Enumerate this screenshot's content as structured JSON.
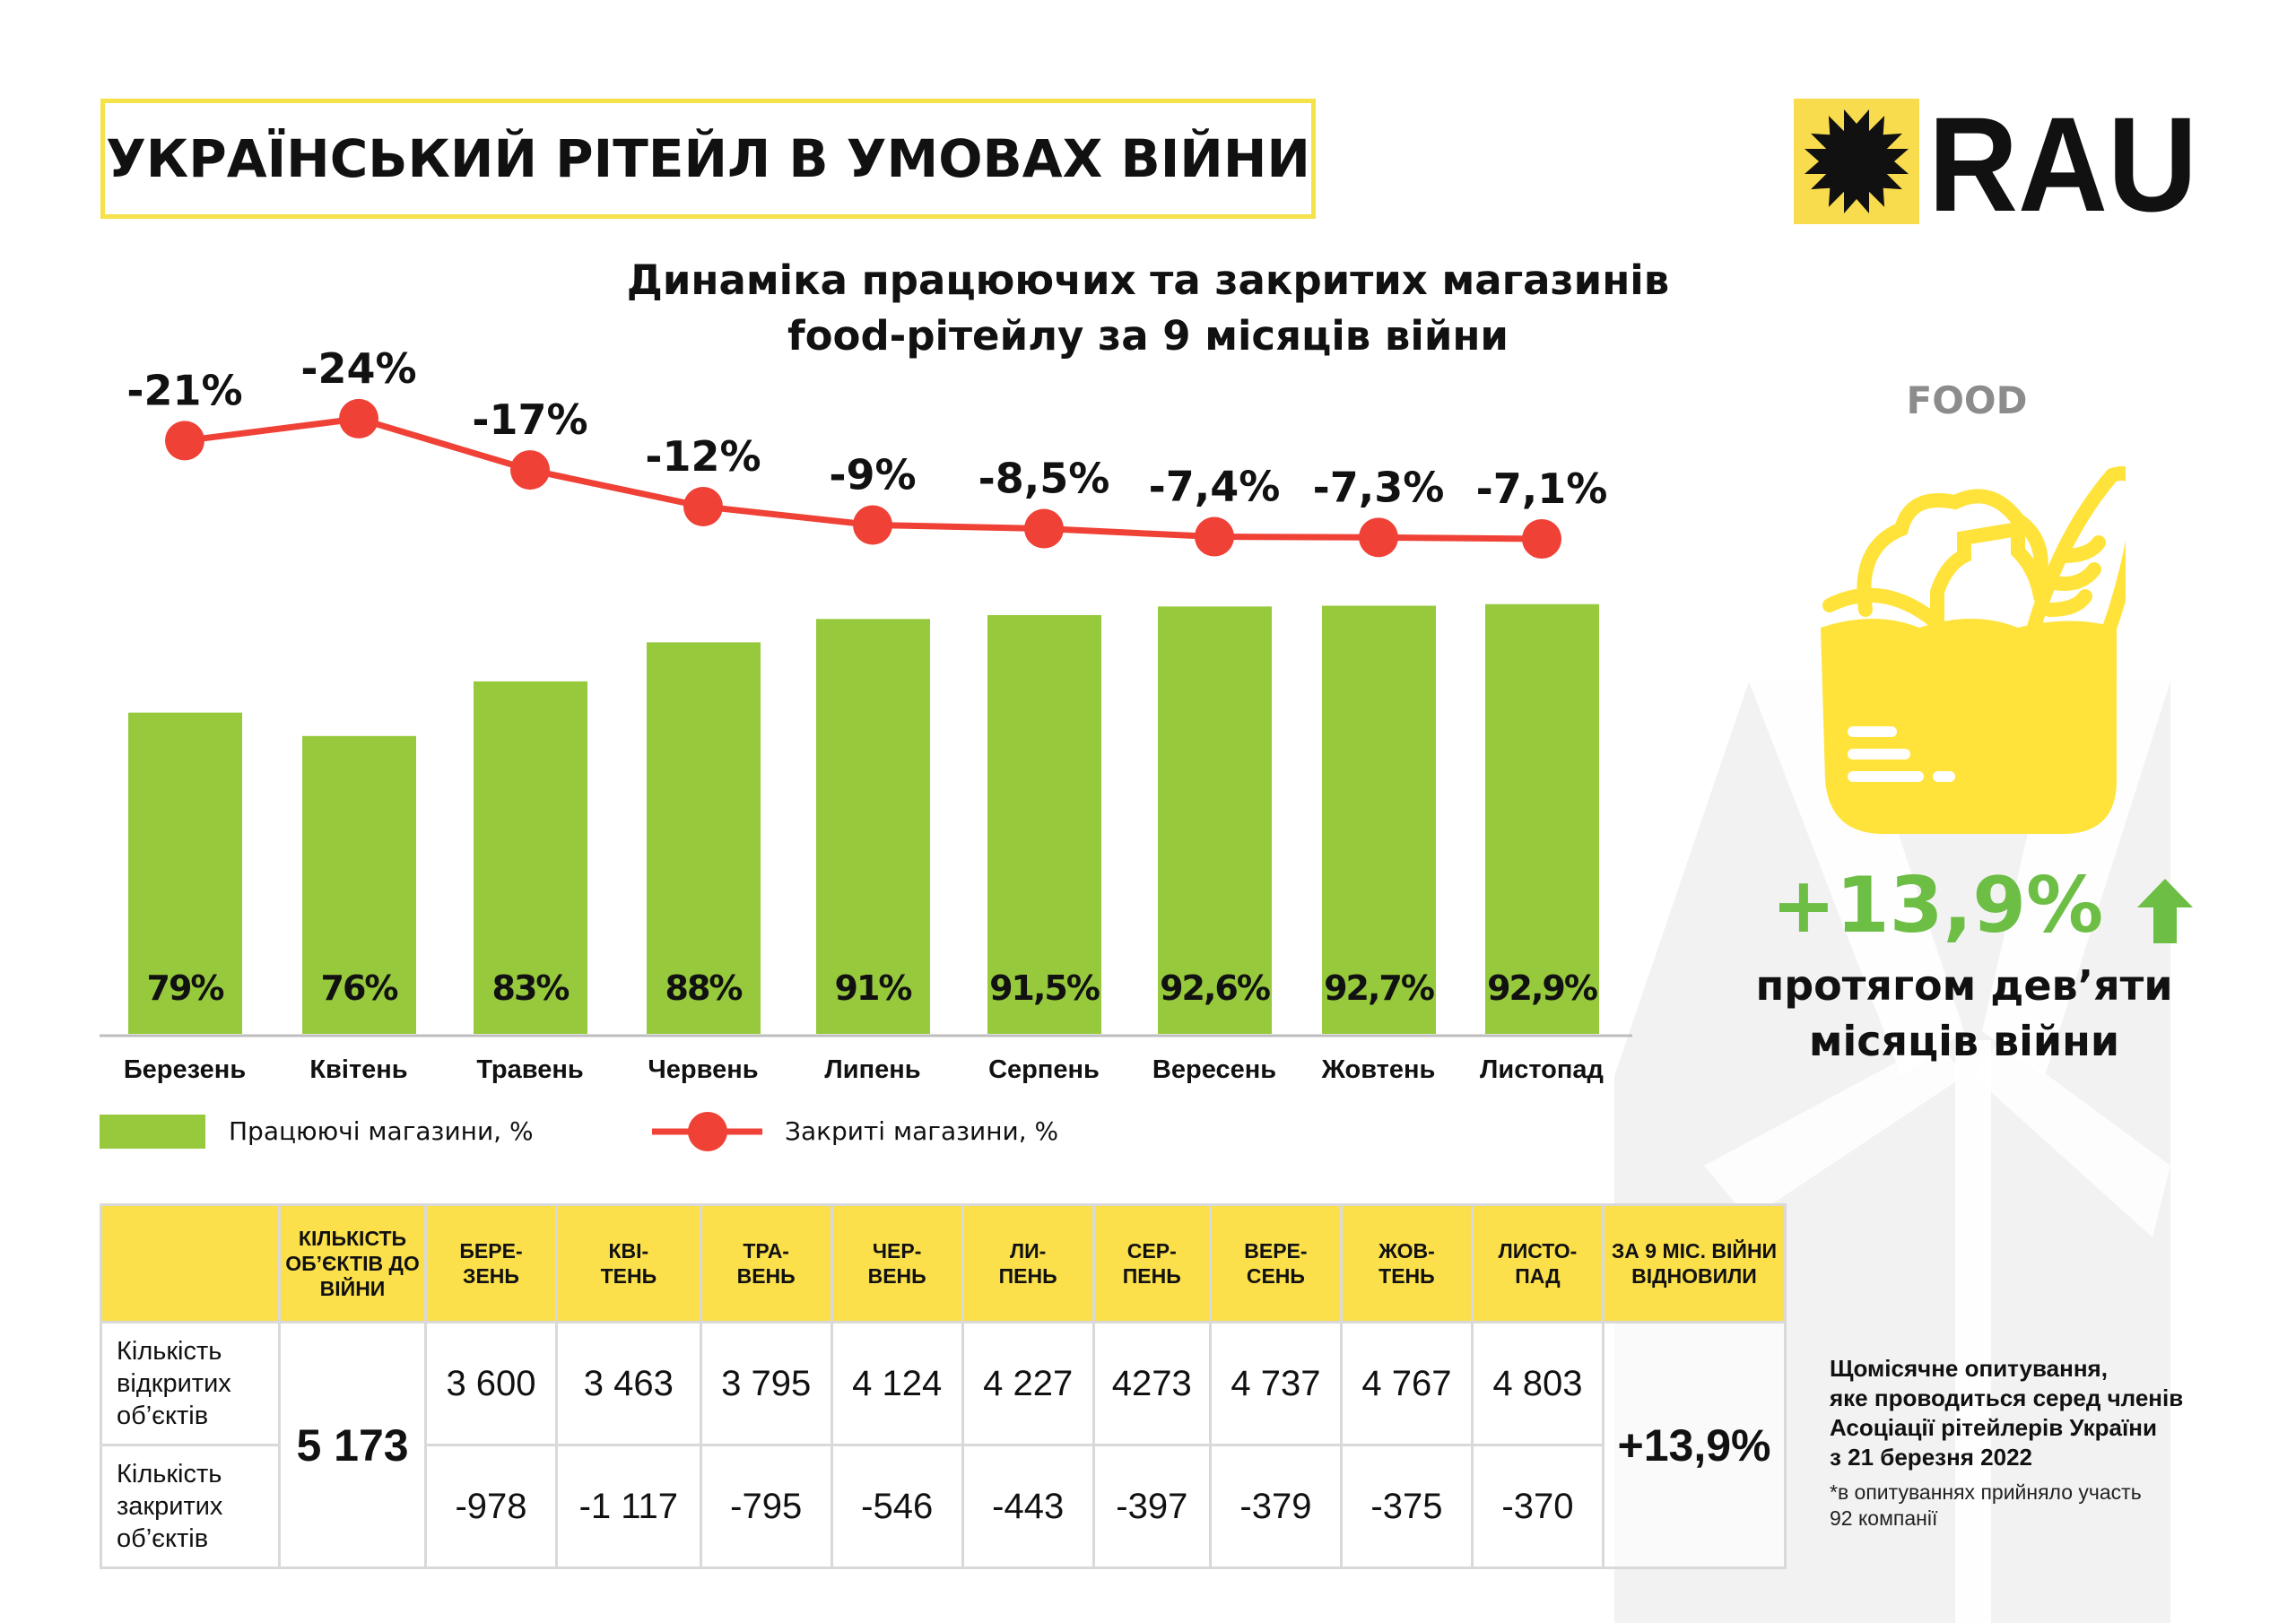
{
  "header": {
    "title": "УКРАЇНСЬКИЙ РІТЕЙЛ В УМОВАХ ВІЙНИ",
    "logo_text": "RAU"
  },
  "colors": {
    "working_bar": "#97C93D",
    "closed_line": "#EF4136",
    "accent_yellow": "#FBE04B",
    "growth_green": "#6DBE45"
  },
  "chart_data": {
    "type": "bar+line",
    "title": "Динаміка працюючих та закритих магазинів food-рітейлу за 9 місяців війни",
    "title_lines": [
      "Динаміка працюючих та закритих магазинів",
      "food-рітейлу за 9 місяців війни"
    ],
    "categories": [
      "Березень",
      "Квітень",
      "Травень",
      "Червень",
      "Липень",
      "Серпень",
      "Вересень",
      "Жовтень",
      "Листопад"
    ],
    "series": [
      {
        "name": "Працюючі магазини, %",
        "type": "bar",
        "values": [
          79,
          76,
          83,
          88,
          91,
          91.5,
          92.6,
          92.7,
          92.9
        ],
        "labels": [
          "79%",
          "76%",
          "83%",
          "88%",
          "91%",
          "91,5%",
          "92,6%",
          "92,7%",
          "92,9%"
        ]
      },
      {
        "name": "Закриті магазини, %",
        "type": "line",
        "values": [
          -21,
          -24,
          -17,
          -12,
          -9,
          -8.5,
          -7.4,
          -7.3,
          -7.1
        ],
        "labels": [
          "-21%",
          "-24%",
          "-17%",
          "-12%",
          "-9%",
          "-8,5%",
          "-7,4%",
          "-7,3%",
          "-7,1%"
        ]
      }
    ],
    "legend": "bottom-left",
    "grid": false
  },
  "table": {
    "headers": [
      "",
      "КІЛЬКІСТЬ ОБ’ЄКТІВ ДО ВІЙНИ",
      "БЕРЕ-\nЗЕНЬ",
      "КВІ-\nТЕНЬ",
      "ТРА-\nВЕНЬ",
      "ЧЕР-\nВЕНЬ",
      "ЛИ-\nПЕНЬ",
      "СЕР-\nПЕНЬ",
      "ВЕРЕ-\nСЕНЬ",
      "ЖОВ-\nТЕНЬ",
      "ЛИСТО-\nПАД",
      "ЗА 9 МІС. ВІЙНИ ВІДНОВИЛИ"
    ],
    "prewar": "5 173",
    "recovered": "+13,9%",
    "rows": [
      {
        "label": "Кількість відкритих об’єктів",
        "values": [
          "3 600",
          "3 463",
          "3 795",
          "4 124",
          "4 227",
          "4273",
          "4 737",
          "4 767",
          "4 803"
        ]
      },
      {
        "label": "Кількість закритих об’єктів",
        "values": [
          "-978",
          "-1 117",
          "-795",
          "-546",
          "-443",
          "-397",
          "-379",
          "-375",
          "-370"
        ]
      }
    ]
  },
  "side": {
    "category": "FOOD",
    "growth": "+13,9%",
    "growth_icon": "arrow-up-icon",
    "growth_text": "протягом дев’яти місяців війни",
    "note": "Щомісячне опитування, яке проводиться серед членів Асоціації рітейлерів України з 21 березня 2022",
    "note_lines": [
      "Щомісячне опитування,",
      "яке проводиться серед членів",
      "Асоціації рітейлерів України",
      "з 21 березня 2022"
    ],
    "footnote_lines": [
      "*в опитуваннях прийняло участь",
      "92 компанії"
    ]
  }
}
